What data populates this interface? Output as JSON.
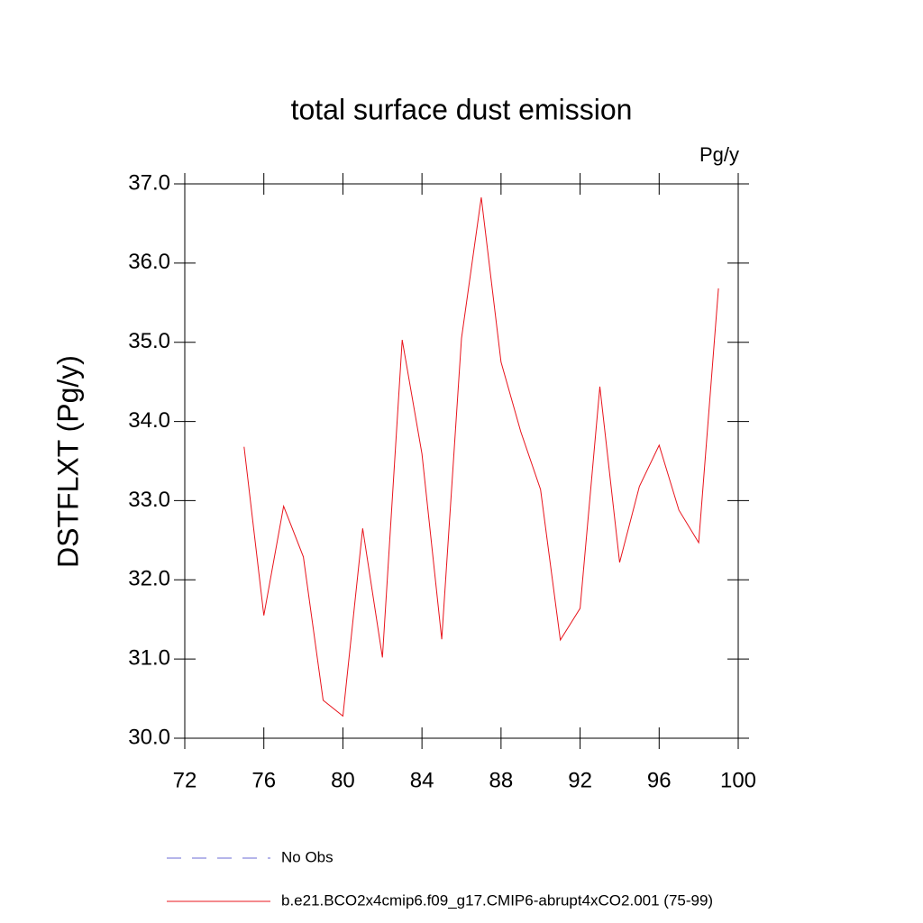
{
  "chart_data": {
    "type": "line",
    "title": "total surface dust emission",
    "units": "Pg/y",
    "y_label": "DSTFLXT  (Pg/y)",
    "x": [
      75,
      76,
      77,
      78,
      79,
      80,
      81,
      82,
      83,
      84,
      85,
      86,
      87,
      88,
      89,
      90,
      91,
      92,
      93,
      94,
      95,
      96,
      97,
      98,
      99
    ],
    "series": [
      {
        "name": "No Obs",
        "color": "#6b6bd6",
        "dashed": true,
        "values": [
          null,
          null,
          null,
          null,
          null,
          null,
          null,
          null,
          null,
          null,
          null,
          null,
          null,
          null,
          null,
          null,
          null,
          null,
          null,
          null,
          null,
          null,
          null,
          null,
          null
        ]
      },
      {
        "name": "b.e21.BCO2x4cmip6.f09_g17.CMIP6-abrupt4xCO2.001 (75-99)",
        "color": "#e8141c",
        "dashed": false,
        "values": [
          33.68,
          31.55,
          32.93,
          32.29,
          30.48,
          30.28,
          32.65,
          31.02,
          35.03,
          33.59,
          31.25,
          35.05,
          36.83,
          34.75,
          33.87,
          33.14,
          31.24,
          31.64,
          34.44,
          32.22,
          33.18,
          33.7,
          32.88,
          32.47,
          35.68
        ]
      }
    ],
    "xlim": [
      72,
      100
    ],
    "xticks": [
      72,
      76,
      80,
      84,
      88,
      92,
      96,
      100
    ],
    "ylim": [
      30,
      37
    ],
    "yticks": [
      {
        "value": 30,
        "label": "30.0"
      },
      {
        "value": 31,
        "label": "31.0"
      },
      {
        "value": 32,
        "label": "32.0"
      },
      {
        "value": 33,
        "label": "33.0"
      },
      {
        "value": 34,
        "label": "34.0"
      },
      {
        "value": 35,
        "label": "35.0"
      },
      {
        "value": 36,
        "label": "36.0"
      },
      {
        "value": 37,
        "label": "37.0"
      }
    ],
    "grid": false,
    "legend": "bottom"
  }
}
